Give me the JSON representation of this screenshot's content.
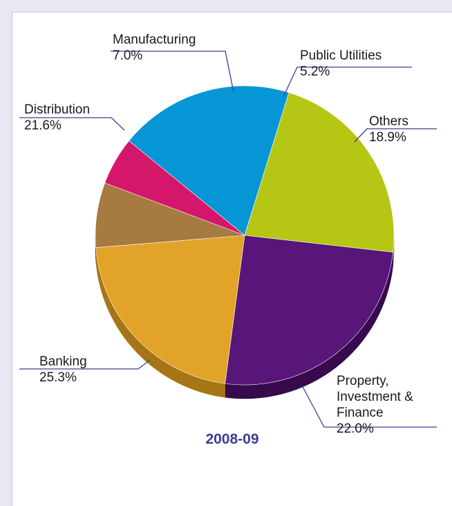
{
  "chart_data": {
    "type": "pie",
    "title": "2008-09",
    "legend": "none",
    "slices": [
      {
        "name_lines": [
          "Public Utilities"
        ],
        "value_label": "5.2%",
        "value": 5.2,
        "color": "#d4176a",
        "side_color": "#8f0f48"
      },
      {
        "name_lines": [
          "Others"
        ],
        "value_label": "18.9%",
        "value": 18.9,
        "color": "#0696d6",
        "side_color": "#04628d"
      },
      {
        "name_lines": [
          "Property,",
          "Investment &",
          "Finance"
        ],
        "value_label": "22.0%",
        "value": 22.0,
        "color": "#b5c614",
        "side_color": "#7b870b"
      },
      {
        "name_lines": [
          "Banking"
        ],
        "value_label": "25.3%",
        "value": 25.3,
        "color": "#58157a",
        "side_color": "#360a4d"
      },
      {
        "name_lines": [
          "Distribution"
        ],
        "value_label": "21.6%",
        "value": 21.6,
        "color": "#e2a329",
        "side_color": "#a67515"
      },
      {
        "name_lines": [
          "Manufacturing"
        ],
        "value_label": "7.0%",
        "value": 7.0,
        "color": "#a77a42",
        "side_color": "#6f4f27"
      }
    ]
  },
  "colors": {
    "leader_line": "#3b3d95",
    "title": "#3b3d95",
    "frame": "#e9e7f1"
  }
}
